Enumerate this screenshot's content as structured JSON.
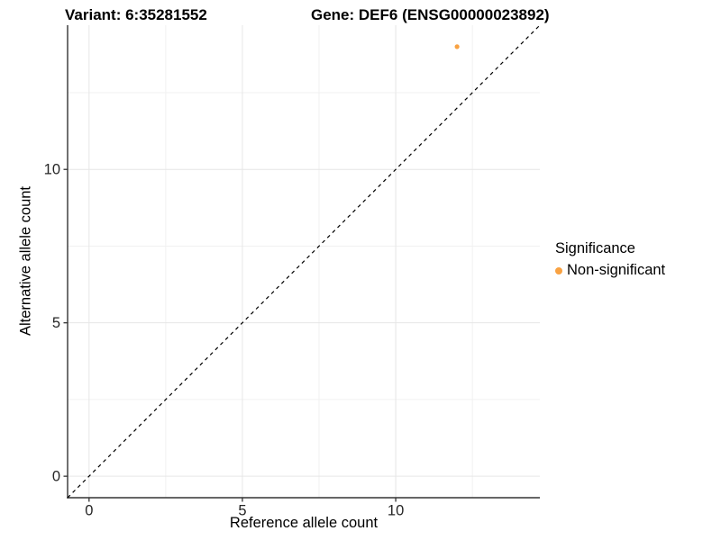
{
  "header": {
    "variant_title": "Variant: 6:35281552",
    "gene_title": "Gene: DEF6 (ENSG00000023892)"
  },
  "legend": {
    "title": "Significance",
    "items": [
      {
        "label": "Non-significant",
        "color": "#F9A242",
        "marker": "circle"
      }
    ]
  },
  "chart_data": {
    "type": "scatter",
    "xlabel": "Reference allele count",
    "ylabel": "Alternative allele count",
    "xlim": [
      -0.7,
      14.7
    ],
    "ylim": [
      -0.7,
      14.7
    ],
    "x_ticks": [
      0,
      5,
      10
    ],
    "y_ticks": [
      0,
      5,
      10
    ],
    "x_minor_gridlines": [
      2.5,
      7.5,
      12.5
    ],
    "y_minor_gridlines": [
      2.5,
      7.5,
      12.5
    ],
    "grid": "on",
    "legend_position": "right",
    "series": [
      {
        "name": "Non-significant",
        "color": "#F9A242",
        "marker_radius_px": 2.6,
        "points": [
          {
            "x": 12,
            "y": 14
          }
        ]
      }
    ],
    "reference_line": {
      "type": "identity",
      "slope": 1,
      "intercept": 0,
      "style": "dashed",
      "color": "#000000"
    }
  },
  "colors": {
    "background": "#FFFFFF",
    "accent_orange": "#F9A242",
    "grid_major": "#E6E6E6",
    "grid_minor": "#F1F1F1",
    "axis_line": "#333333",
    "tick_text": "#262626",
    "title_text": "#000000"
  }
}
